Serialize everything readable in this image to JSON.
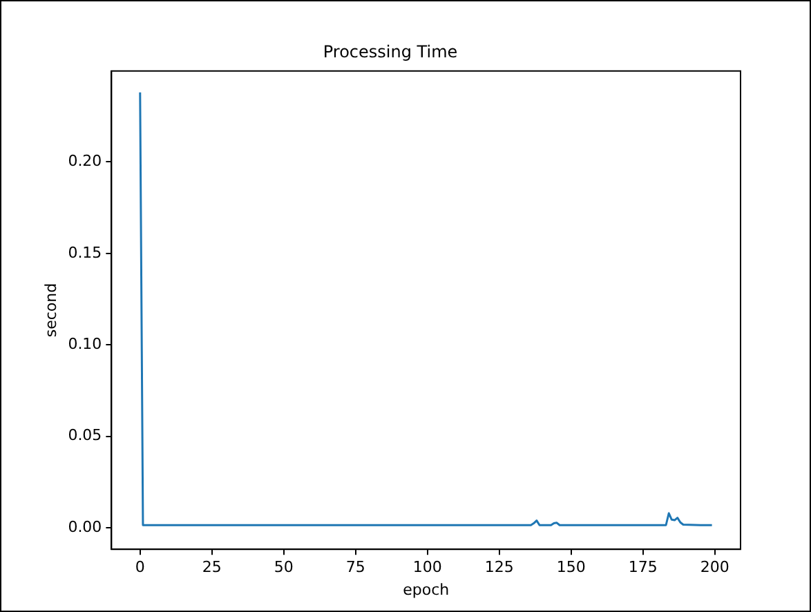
{
  "chart_data": {
    "type": "line",
    "title": "Processing Time",
    "xlabel": "epoch",
    "ylabel": "second",
    "x": [
      0,
      1,
      20,
      40,
      60,
      80,
      100,
      120,
      136,
      137,
      138,
      139,
      143,
      144,
      145,
      146,
      160,
      183,
      184,
      185,
      186,
      187,
      188,
      189,
      195,
      199
    ],
    "series": [
      {
        "color": "#1f77b4",
        "values": [
          0.238,
          0.0015,
          0.0015,
          0.0015,
          0.0015,
          0.0015,
          0.0015,
          0.0015,
          0.0015,
          0.0025,
          0.004,
          0.0015,
          0.0015,
          0.0025,
          0.0028,
          0.0015,
          0.0015,
          0.0015,
          0.008,
          0.0045,
          0.0042,
          0.0055,
          0.003,
          0.0018,
          0.0015,
          0.0015
        ]
      }
    ],
    "xlim": [
      -9.95,
      208.95
    ],
    "ylim": [
      -0.0117,
      0.2497
    ],
    "xticks": [
      0,
      25,
      50,
      75,
      100,
      125,
      150,
      175,
      200
    ],
    "yticks": [
      {
        "value": 0,
        "label": "0.00"
      },
      {
        "value": 0.05,
        "label": "0.05"
      },
      {
        "value": 0.1,
        "label": "0.10"
      },
      {
        "value": 0.15,
        "label": "0.15"
      },
      {
        "value": 0.2,
        "label": "0.20"
      }
    ],
    "grid": false,
    "legend": false,
    "marker": "none",
    "line_style": "solid"
  }
}
